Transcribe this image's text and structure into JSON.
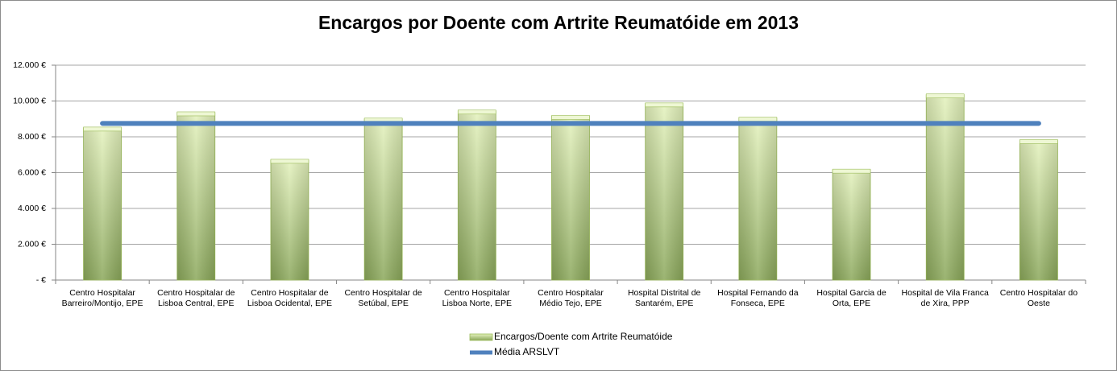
{
  "chart_data": {
    "type": "bar",
    "title": "Encargos por Doente com Artrite Reumatóide em 2013",
    "categories": [
      "Centro Hospitalar Barreiro/Montijo, EPE",
      "Centro Hospitalar de Lisboa Central, EPE",
      "Centro Hospitalar de Lisboa Ocidental, EPE",
      "Centro Hospitalar de Setúbal, EPE",
      "Centro Hospitalar Lisboa Norte, EPE",
      "Centro Hospitalar Médio Tejo, EPE",
      "Hospital Distrital de Santarém, EPE",
      "Hospital Fernando da Fonseca, EPE",
      "Hospital Garcia de Orta, EPE",
      "Hospital de Vila Franca de Xira, PPP",
      "Centro Hospitalar do Oeste"
    ],
    "series": [
      {
        "name": "Encargos/Doente com Artrite Reumatóide",
        "type": "bar",
        "color": "#9bbb59",
        "values": [
          8500,
          9350,
          6700,
          9000,
          9450,
          9150,
          9850,
          9050,
          6150,
          10350,
          7800
        ]
      },
      {
        "name": "Média ARSLVT",
        "type": "line",
        "color": "#4f81bd",
        "values": [
          8750,
          8750,
          8750,
          8750,
          8750,
          8750,
          8750,
          8750,
          8750,
          8750,
          8750
        ]
      }
    ],
    "ylim": [
      0,
      12000
    ],
    "yticks": [
      {
        "value": 0,
        "label": "- €"
      },
      {
        "value": 2000,
        "label": "2.000 €"
      },
      {
        "value": 4000,
        "label": "4.000 €"
      },
      {
        "value": 6000,
        "label": "6.000 €"
      },
      {
        "value": 8000,
        "label": "8.000 €"
      },
      {
        "value": 10000,
        "label": "10.000 €"
      },
      {
        "value": 12000,
        "label": "12.000 €"
      }
    ],
    "grid": true,
    "legend": "bottom"
  }
}
